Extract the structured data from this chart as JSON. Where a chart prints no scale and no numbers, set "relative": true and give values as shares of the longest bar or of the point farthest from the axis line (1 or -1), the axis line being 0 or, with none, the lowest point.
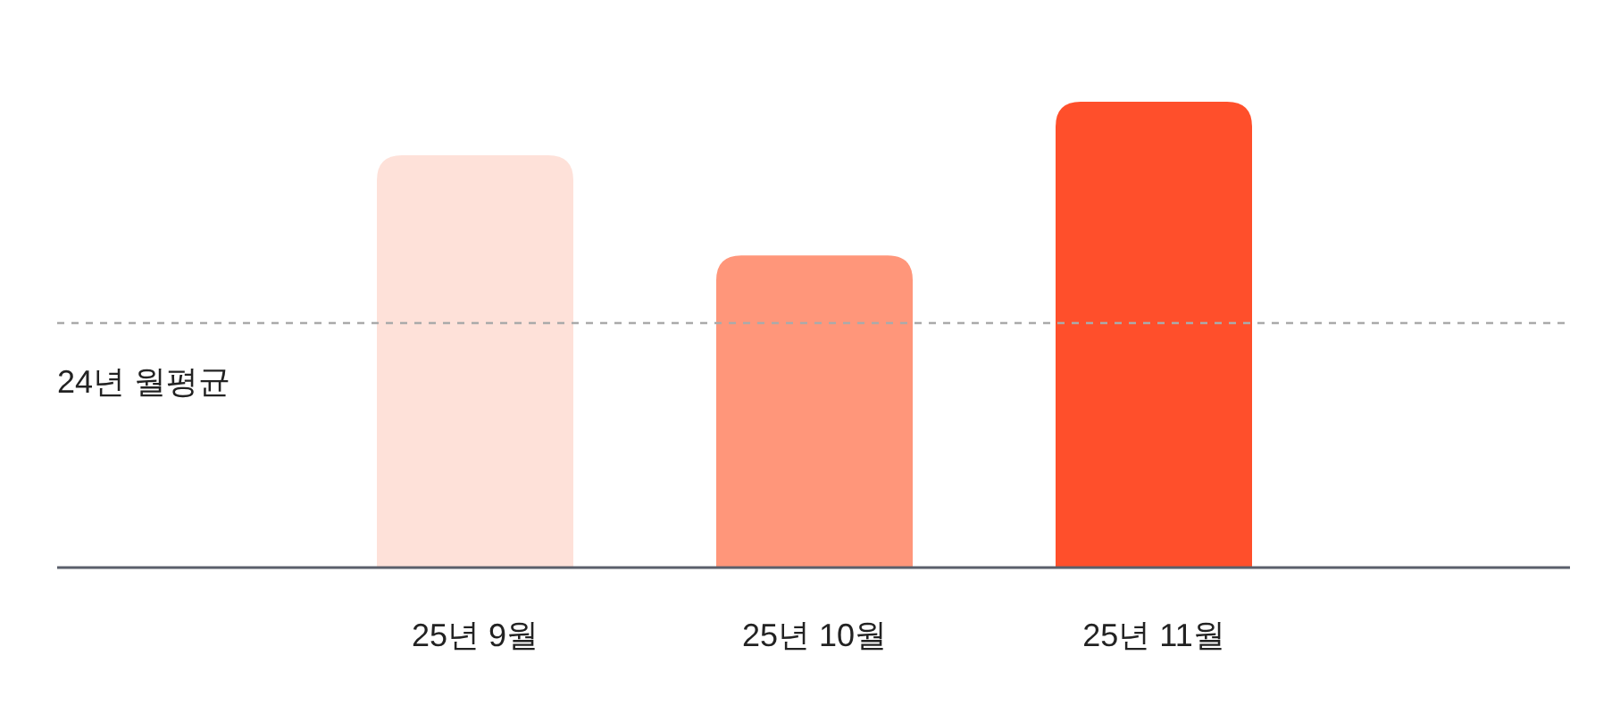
{
  "chart_data": {
    "type": "bar",
    "relative": true,
    "categories": [
      "25년 9월",
      "25년 10월",
      "25년 11월"
    ],
    "values": [
      0.885,
      0.67,
      1
    ],
    "colors": [
      "#fee1d9",
      "#ff967a",
      "#ff4f2b"
    ],
    "ref_lines": [
      {
        "axis": "y",
        "value": 0.525,
        "label": "24년 월평균",
        "color": "#aaaaaa",
        "line_style": "dashed"
      }
    ]
  }
}
